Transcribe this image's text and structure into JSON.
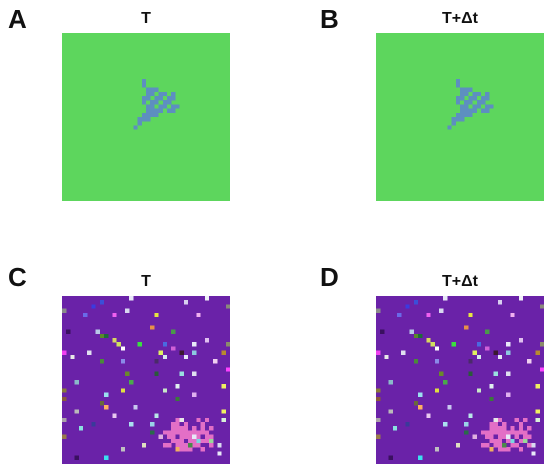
{
  "panels": [
    {
      "letter": "A",
      "title": "T"
    },
    {
      "letter": "B",
      "title": "T+Δt"
    },
    {
      "letter": "C",
      "title": "T"
    },
    {
      "letter": "D",
      "title": "T+Δt"
    }
  ],
  "colors": {
    "top_background": "#5DD65D",
    "top_cluster": "#5D8FC0",
    "bottom_background": "#6A22A8",
    "bottom_cluster": "#E36FC6"
  }
}
